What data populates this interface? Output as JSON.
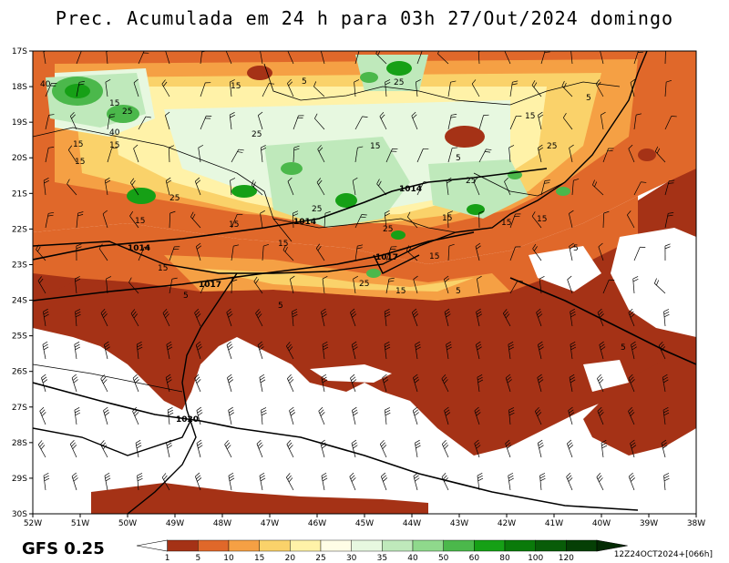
{
  "title": "Prec. Acumulada em 24 h para 03h 27/Out/2024 domingo",
  "model_label": "GFS 0.25",
  "run_stamp": "12Z24OCT2024+[066h]",
  "lat_labels": [
    "17S",
    "18S",
    "19S",
    "20S",
    "21S",
    "22S",
    "23S",
    "24S",
    "25S",
    "26S",
    "27S",
    "28S",
    "29S",
    "30S"
  ],
  "lon_labels": [
    "52W",
    "51W",
    "50W",
    "49W",
    "48W",
    "47W",
    "46W",
    "45W",
    "44W",
    "43W",
    "42W",
    "41W",
    "40W",
    "39W",
    "38W"
  ],
  "colorbar": {
    "values": [
      "1",
      "5",
      "10",
      "15",
      "20",
      "25",
      "30",
      "35",
      "40",
      "50",
      "60",
      "80",
      "100",
      "120"
    ],
    "colors": [
      "#a53216",
      "#e0682a",
      "#f5a044",
      "#fad26a",
      "#fff2a8",
      "#fffde6",
      "#e7f8e0",
      "#bfe9bb",
      "#8fd98c",
      "#4bb84b",
      "#16a016",
      "#0a7a0a",
      "#085c08",
      "#053f05",
      "#032a03"
    ]
  },
  "contour_labels": [
    {
      "text": "40"
    },
    {
      "text": "15"
    },
    {
      "text": "5"
    },
    {
      "text": "25"
    },
    {
      "text": "5"
    },
    {
      "text": "15"
    },
    {
      "text": "40"
    },
    {
      "text": "15"
    },
    {
      "text": "25"
    },
    {
      "text": "15"
    },
    {
      "text": "15"
    },
    {
      "text": "5"
    },
    {
      "text": "25"
    },
    {
      "text": "25"
    },
    {
      "text": "25"
    },
    {
      "text": "15"
    },
    {
      "text": "15"
    },
    {
      "text": "15"
    },
    {
      "text": "5"
    },
    {
      "text": "15"
    },
    {
      "text": "15"
    },
    {
      "text": "5"
    },
    {
      "text": "25"
    },
    {
      "text": "15"
    },
    {
      "text": "15"
    },
    {
      "text": "5"
    },
    {
      "text": "5"
    },
    {
      "text": "5"
    },
    {
      "text": "15"
    },
    {
      "text": "15"
    },
    {
      "text": "15"
    },
    {
      "text": "25"
    },
    {
      "text": "25"
    },
    {
      "text": "15"
    },
    {
      "text": "25"
    }
  ],
  "isobar_labels": [
    "1014",
    "1014",
    "1014",
    "1017",
    "1017",
    "1020"
  ]
}
